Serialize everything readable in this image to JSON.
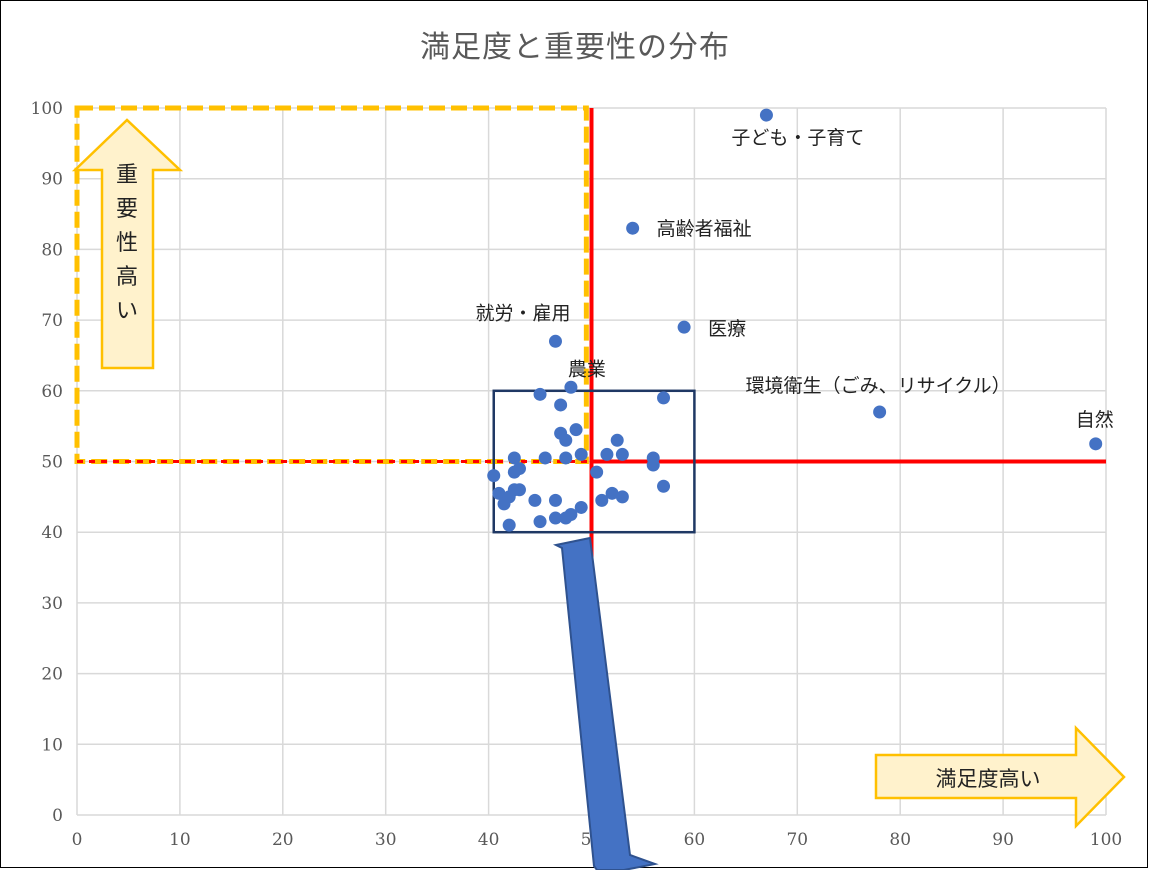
{
  "chart_data": {
    "type": "scatter",
    "title": "満足度と重要性の分布",
    "xlim": [
      0,
      100
    ],
    "ylim": [
      0,
      100
    ],
    "x_ticks": [
      "0",
      "10",
      "20",
      "30",
      "40",
      "50",
      "60",
      "70",
      "80",
      "90",
      "100"
    ],
    "y_ticks": [
      "0",
      "10",
      "20",
      "30",
      "40",
      "50",
      "60",
      "70",
      "80",
      "90",
      "100"
    ],
    "grid": true,
    "point_color": "#4472C4",
    "reference_lines": {
      "x": 50,
      "y": 50,
      "color": "#FF0000"
    },
    "labeled_points": [
      {
        "label": "子ども・子育て",
        "x": 67,
        "y": 99
      },
      {
        "label": "高齢者福祉",
        "x": 54,
        "y": 83
      },
      {
        "label": "医療",
        "x": 59,
        "y": 69
      },
      {
        "label": "就労・雇用",
        "x": 46.5,
        "y": 67
      },
      {
        "label": "農業",
        "x": 48,
        "y": 60.5
      },
      {
        "label": "環境衛生（ごみ、リサイクル）",
        "x": 78,
        "y": 57
      },
      {
        "label": "自然",
        "x": 99,
        "y": 52.5
      }
    ],
    "points": [
      [
        45,
        59.5
      ],
      [
        47,
        58
      ],
      [
        48.5,
        54.5
      ],
      [
        47,
        54
      ],
      [
        47.5,
        53
      ],
      [
        45.5,
        50.5
      ],
      [
        47.5,
        50.5
      ],
      [
        49,
        51
      ],
      [
        42.5,
        50.5
      ],
      [
        43,
        49
      ],
      [
        42.5,
        48.5
      ],
      [
        40.5,
        48
      ],
      [
        43,
        46
      ],
      [
        42.5,
        46
      ],
      [
        41,
        45.5
      ],
      [
        42,
        45
      ],
      [
        44.5,
        44.5
      ],
      [
        46.5,
        44.5
      ],
      [
        41.5,
        44
      ],
      [
        49,
        43.5
      ],
      [
        48,
        42.5
      ],
      [
        46.5,
        42
      ],
      [
        47.5,
        42
      ],
      [
        45,
        41.5
      ],
      [
        42,
        41
      ],
      [
        50.5,
        48.5
      ],
      [
        51.5,
        51
      ],
      [
        52.5,
        53
      ],
      [
        53,
        51
      ],
      [
        56,
        50.5
      ],
      [
        56,
        49.5
      ],
      [
        57,
        59
      ],
      [
        53,
        45
      ],
      [
        52,
        45.5
      ],
      [
        51,
        44.5
      ],
      [
        57,
        46.5
      ]
    ],
    "annotations": {
      "importance_arrow": "重要性高い",
      "satisfaction_arrow": "満足度高い"
    },
    "colors": {
      "highlight_box": "#FFC000",
      "cluster_box": "#1F3864",
      "big_arrow": "#4472C4"
    }
  }
}
